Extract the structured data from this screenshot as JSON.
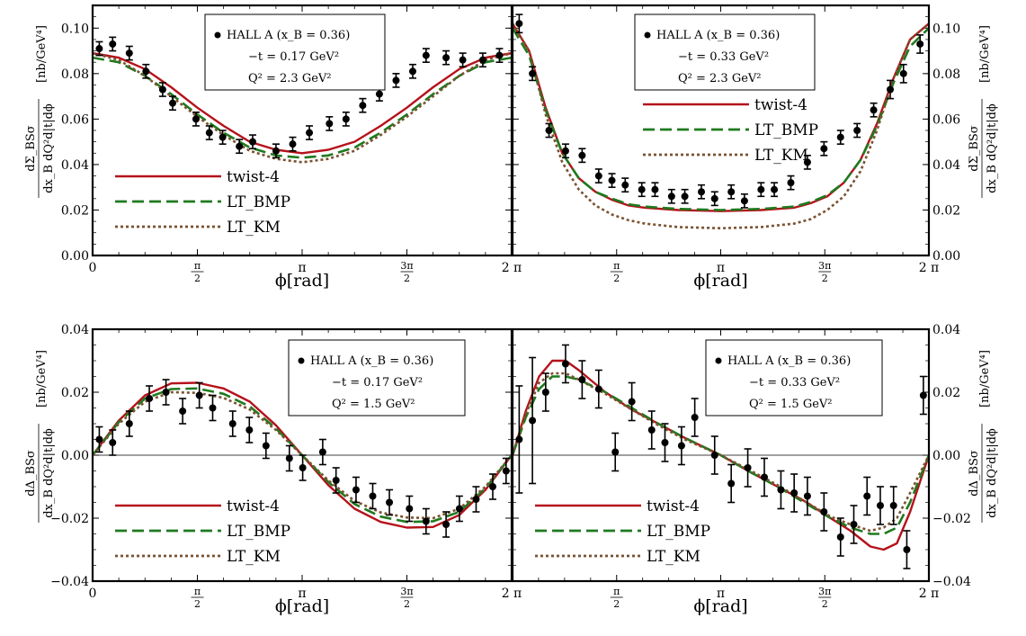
{
  "chart_data": [
    {
      "type": "line",
      "panel": "top-left",
      "x_unit": "rad",
      "xlim": [
        0,
        6.2832
      ],
      "ylim": [
        0,
        0.11
      ],
      "yticks": [
        0,
        0.02,
        0.04,
        0.06,
        0.08,
        0.1
      ],
      "ytick_labels": [
        "0.00",
        "0.02",
        "0.04",
        "0.06",
        "0.08",
        "0.10"
      ],
      "xtick_labels": [
        "0",
        "π/2",
        "π",
        "3π/2",
        "2 π"
      ],
      "xlabel": "ϕ[rad]",
      "ylabel": "dΣ_BSσ / dx_B dQ²d|t|dϕ [nb/GeV⁴]",
      "ylabel_side": "left",
      "zero_line": false,
      "legend": [
        "twist-4",
        "LT_BMP",
        "LT_KM"
      ],
      "legend_position": "bottom-left",
      "info": {
        "line1": "HALL A (x_B = 0.36)",
        "line2": "−t = 0.17 GeV²",
        "line3": "Q² = 2.3   GeV²"
      },
      "info_position": "top-center",
      "series": [
        {
          "name": "twist-4",
          "style": "solid",
          "color": "#b5121b",
          "x": [
            0,
            0.3927,
            0.7854,
            1.1781,
            1.5708,
            1.9635,
            2.3562,
            2.7489,
            3.1416,
            3.5343,
            3.927,
            4.3197,
            4.7124,
            5.1051,
            5.4978,
            5.8905,
            6.2832
          ],
          "y": [
            0.089,
            0.087,
            0.082,
            0.074,
            0.065,
            0.057,
            0.05,
            0.0465,
            0.045,
            0.0465,
            0.05,
            0.057,
            0.065,
            0.074,
            0.082,
            0.087,
            0.089
          ]
        },
        {
          "name": "LT_BMP",
          "style": "dashed",
          "color": "#1f7a1f",
          "x": [
            0,
            0.3927,
            0.7854,
            1.1781,
            1.5708,
            1.9635,
            2.3562,
            2.7489,
            3.1416,
            3.5343,
            3.927,
            4.3197,
            4.7124,
            5.1051,
            5.4978,
            5.8905,
            6.2832
          ],
          "y": [
            0.087,
            0.085,
            0.079,
            0.071,
            0.062,
            0.054,
            0.0475,
            0.044,
            0.043,
            0.044,
            0.0475,
            0.054,
            0.062,
            0.071,
            0.079,
            0.085,
            0.087
          ]
        },
        {
          "name": "LT_KM",
          "style": "dotted",
          "color": "#7a5230",
          "x": [
            0,
            0.3927,
            0.7854,
            1.1781,
            1.5708,
            1.9635,
            2.3562,
            2.7489,
            3.1416,
            3.5343,
            3.927,
            4.3197,
            4.7124,
            5.1051,
            5.4978,
            5.8905,
            6.2832
          ],
          "y": [
            0.089,
            0.086,
            0.079,
            0.07,
            0.061,
            0.053,
            0.046,
            0.0425,
            0.041,
            0.0425,
            0.046,
            0.053,
            0.061,
            0.07,
            0.079,
            0.086,
            0.089
          ]
        }
      ],
      "data_points": {
        "x": [
          0.1,
          0.3,
          0.55,
          0.8,
          1.05,
          1.2,
          1.55,
          1.75,
          1.95,
          2.2,
          2.4,
          2.75,
          3.0,
          3.25,
          3.55,
          3.8,
          4.05,
          4.3,
          4.55,
          4.8,
          5.0,
          5.3,
          5.55,
          5.85,
          6.1
        ],
        "y": [
          0.091,
          0.093,
          0.089,
          0.081,
          0.073,
          0.067,
          0.06,
          0.054,
          0.052,
          0.048,
          0.05,
          0.046,
          0.049,
          0.054,
          0.058,
          0.06,
          0.066,
          0.071,
          0.077,
          0.081,
          0.088,
          0.087,
          0.086,
          0.086,
          0.088
        ],
        "err": [
          0.003,
          0.003,
          0.003,
          0.003,
          0.003,
          0.003,
          0.003,
          0.003,
          0.003,
          0.003,
          0.003,
          0.003,
          0.003,
          0.003,
          0.003,
          0.003,
          0.003,
          0.003,
          0.003,
          0.003,
          0.003,
          0.003,
          0.003,
          0.003,
          0.003
        ]
      }
    },
    {
      "type": "line",
      "panel": "top-right",
      "x_unit": "rad",
      "xlim": [
        0,
        6.2832
      ],
      "ylim": [
        0,
        0.11
      ],
      "yticks": [
        0,
        0.02,
        0.04,
        0.06,
        0.08,
        0.1
      ],
      "ytick_labels": [
        "0.00",
        "0.02",
        "0.04",
        "0.06",
        "0.08",
        "0.10"
      ],
      "xtick_labels": [
        "0",
        "π/2",
        "π",
        "3π/2",
        "2 π"
      ],
      "xlabel": "ϕ[rad]",
      "ylabel": "dΣ_BSσ / dx_B dQ²d|t|dϕ [nb/GeV⁴]",
      "ylabel_side": "right",
      "zero_line": false,
      "legend": [
        "twist-4",
        "LT_BMP",
        "LT_KM"
      ],
      "legend_position": "center-left",
      "info": {
        "line1": "HALL A (x_B = 0.36)",
        "line2": "−t = 0.33 GeV²",
        "line3": "Q² = 2.3   GeV²"
      },
      "info_position": "top-center",
      "series": [
        {
          "name": "twist-4",
          "style": "solid",
          "color": "#b5121b",
          "x": [
            0,
            0.25,
            0.5,
            0.75,
            1.0,
            1.25,
            1.5,
            1.75,
            2.0,
            2.5,
            3.1416,
            3.75,
            4.25,
            4.5,
            4.75,
            5.0,
            5.25,
            5.5,
            5.75,
            6.0,
            6.2832
          ],
          "y": [
            0.102,
            0.09,
            0.065,
            0.045,
            0.034,
            0.028,
            0.0245,
            0.022,
            0.021,
            0.02,
            0.0195,
            0.02,
            0.021,
            0.023,
            0.026,
            0.032,
            0.042,
            0.058,
            0.078,
            0.095,
            0.102
          ]
        },
        {
          "name": "LT_BMP",
          "style": "dashed",
          "color": "#1f7a1f",
          "x": [
            0,
            0.25,
            0.5,
            0.75,
            1.0,
            1.25,
            1.5,
            1.75,
            2.0,
            2.5,
            3.1416,
            3.75,
            4.25,
            4.5,
            4.75,
            5.0,
            5.25,
            5.5,
            5.75,
            6.0,
            6.2832
          ],
          "y": [
            0.1,
            0.088,
            0.064,
            0.045,
            0.034,
            0.028,
            0.025,
            0.0225,
            0.0215,
            0.0205,
            0.02,
            0.0205,
            0.0215,
            0.0235,
            0.0265,
            0.032,
            0.042,
            0.057,
            0.076,
            0.092,
            0.1
          ]
        },
        {
          "name": "LT_KM",
          "style": "dotted",
          "color": "#7a5230",
          "x": [
            0,
            0.25,
            0.5,
            0.75,
            1.0,
            1.25,
            1.5,
            1.75,
            2.0,
            2.5,
            3.1416,
            3.75,
            4.25,
            4.5,
            4.75,
            5.0,
            5.25,
            5.5,
            5.75,
            6.0,
            6.2832
          ],
          "y": [
            0.102,
            0.09,
            0.062,
            0.041,
            0.029,
            0.022,
            0.018,
            0.0155,
            0.014,
            0.0125,
            0.012,
            0.0125,
            0.014,
            0.016,
            0.02,
            0.026,
            0.037,
            0.055,
            0.078,
            0.095,
            0.102
          ]
        }
      ],
      "data_points": {
        "x": [
          0.1,
          0.3,
          0.55,
          0.8,
          1.05,
          1.3,
          1.5,
          1.7,
          1.95,
          2.15,
          2.4,
          2.6,
          2.85,
          3.05,
          3.3,
          3.5,
          3.75,
          3.95,
          4.2,
          4.45,
          4.7,
          4.95,
          5.2,
          5.45,
          5.7,
          5.9,
          6.15
        ],
        "y": [
          0.102,
          0.08,
          0.055,
          0.046,
          0.044,
          0.035,
          0.033,
          0.031,
          0.029,
          0.029,
          0.026,
          0.026,
          0.028,
          0.025,
          0.028,
          0.024,
          0.029,
          0.029,
          0.032,
          0.041,
          0.047,
          0.052,
          0.055,
          0.064,
          0.073,
          0.08,
          0.093
        ],
        "err": [
          0.004,
          0.003,
          0.003,
          0.003,
          0.003,
          0.003,
          0.003,
          0.003,
          0.003,
          0.003,
          0.003,
          0.003,
          0.003,
          0.003,
          0.003,
          0.003,
          0.003,
          0.003,
          0.003,
          0.003,
          0.003,
          0.003,
          0.003,
          0.003,
          0.004,
          0.004,
          0.004
        ]
      }
    },
    {
      "type": "line",
      "panel": "bottom-left",
      "x_unit": "rad",
      "xlim": [
        0,
        6.2832
      ],
      "ylim": [
        -0.04,
        0.04
      ],
      "yticks": [
        -0.04,
        -0.02,
        0,
        0.02,
        0.04
      ],
      "ytick_labels": [
        "−0.04",
        "−0.02",
        "0.00",
        "0.02",
        "0.04"
      ],
      "xtick_labels": [
        "0",
        "π/2",
        "π",
        "3π/2",
        "2 π"
      ],
      "xlabel": "ϕ[rad]",
      "ylabel": "dΔ_BSσ / dx_B dQ²d|t|dϕ [nb/GeV⁴]",
      "ylabel_side": "left",
      "zero_line": true,
      "legend": [
        "twist-4",
        "LT_BMP",
        "LT_KM"
      ],
      "legend_position": "bottom-left",
      "info": {
        "line1": "HALL A (x_B = 0.36)",
        "line2": "−t = 0.17 GeV²",
        "line3": "Q² = 1.5   GeV²"
      },
      "info_position": "top-right",
      "series": [
        {
          "name": "twist-4",
          "style": "solid",
          "color": "#b5121b",
          "x": [
            0,
            0.3927,
            0.7854,
            1.1781,
            1.5708,
            1.9635,
            2.3562,
            2.7489,
            3.1416,
            3.5343,
            3.927,
            4.3197,
            4.7124,
            5.1051,
            5.4978,
            5.8905,
            6.2832
          ],
          "y": [
            0.0,
            0.011,
            0.019,
            0.0228,
            0.023,
            0.0212,
            0.017,
            0.0095,
            0.0,
            -0.0095,
            -0.017,
            -0.0212,
            -0.023,
            -0.0228,
            -0.019,
            -0.011,
            0.0
          ]
        },
        {
          "name": "LT_BMP",
          "style": "dashed",
          "color": "#1f7a1f",
          "x": [
            0,
            0.3927,
            0.7854,
            1.1781,
            1.5708,
            1.9635,
            2.3562,
            2.7489,
            3.1416,
            3.5343,
            3.927,
            4.3197,
            4.7124,
            5.1051,
            5.4978,
            5.8905,
            6.2832
          ],
          "y": [
            0.0,
            0.0105,
            0.018,
            0.021,
            0.0212,
            0.0195,
            0.0155,
            0.0085,
            0.0,
            -0.0085,
            -0.0155,
            -0.0195,
            -0.0212,
            -0.021,
            -0.018,
            -0.0105,
            0.0
          ]
        },
        {
          "name": "LT_KM",
          "style": "dotted",
          "color": "#7a5230",
          "x": [
            0,
            0.3927,
            0.7854,
            1.1781,
            1.5708,
            1.9635,
            2.3562,
            2.7489,
            3.1416,
            3.5343,
            3.927,
            4.3197,
            4.7124,
            5.1051,
            5.4978,
            5.8905,
            6.2832
          ],
          "y": [
            0.0,
            0.01,
            0.017,
            0.02,
            0.0198,
            0.0182,
            0.0145,
            0.008,
            0.0,
            -0.008,
            -0.0145,
            -0.0182,
            -0.0198,
            -0.02,
            -0.017,
            -0.01,
            0.0
          ]
        }
      ],
      "data_points": {
        "x": [
          0.1,
          0.3,
          0.55,
          0.85,
          1.1,
          1.35,
          1.6,
          1.8,
          2.1,
          2.35,
          2.6,
          2.95,
          3.15,
          3.45,
          3.65,
          3.95,
          4.2,
          4.45,
          4.75,
          5.0,
          5.3,
          5.5,
          5.75,
          6.0,
          6.2
        ],
        "y": [
          0.005,
          0.004,
          0.01,
          0.018,
          0.02,
          0.014,
          0.019,
          0.015,
          0.01,
          0.008,
          0.003,
          -0.001,
          -0.004,
          0.001,
          -0.008,
          -0.011,
          -0.013,
          -0.015,
          -0.017,
          -0.021,
          -0.022,
          -0.017,
          -0.014,
          -0.01,
          -0.005
        ]
      }
    },
    {
      "type": "line",
      "panel": "bottom-right",
      "x_unit": "rad",
      "xlim": [
        0,
        6.2832
      ],
      "ylim": [
        -0.04,
        0.04
      ],
      "yticks": [
        -0.04,
        -0.02,
        0,
        0.02,
        0.04
      ],
      "ytick_labels": [
        "−0.04",
        "−0.02",
        "0.00",
        "0.02",
        "0.04"
      ],
      "xtick_labels": [
        "0",
        "π/2",
        "π",
        "3π/2",
        "2 π"
      ],
      "xlabel": "ϕ[rad]",
      "ylabel": "dΔ_BSσ / dx_B dQ²d|t|dϕ [nb/GeV⁴]",
      "ylabel_side": "right",
      "zero_line": true,
      "legend": [
        "twist-4",
        "LT_BMP",
        "LT_KM"
      ],
      "legend_position": "bottom-left",
      "info": {
        "line1": "HALL A (x_B = 0.36)",
        "line2": "−t = 0.33 GeV²",
        "line3": "Q² = 1.5   GeV²"
      },
      "info_position": "top-right",
      "series": [
        {
          "name": "twist-4",
          "style": "solid",
          "color": "#b5121b",
          "x": [
            0,
            0.2,
            0.4,
            0.6,
            0.8,
            1.0,
            1.4,
            1.8,
            2.2,
            2.6,
            3.1416,
            3.6,
            4.0,
            4.4,
            4.8,
            5.1,
            5.4,
            5.6,
            5.8,
            6.0,
            6.2832
          ],
          "y": [
            0.0,
            0.014,
            0.025,
            0.03,
            0.03,
            0.027,
            0.02,
            0.0145,
            0.01,
            0.0055,
            0.0,
            -0.0055,
            -0.01,
            -0.0145,
            -0.02,
            -0.024,
            -0.029,
            -0.03,
            -0.028,
            -0.018,
            0.0
          ]
        },
        {
          "name": "LT_BMP",
          "style": "dashed",
          "color": "#1f7a1f",
          "x": [
            0,
            0.2,
            0.4,
            0.6,
            0.8,
            1.0,
            1.4,
            1.8,
            2.2,
            2.6,
            3.1416,
            3.6,
            4.0,
            4.4,
            4.8,
            5.1,
            5.4,
            5.6,
            5.8,
            6.0,
            6.2832
          ],
          "y": [
            0.0,
            0.012,
            0.021,
            0.025,
            0.025,
            0.024,
            0.02,
            0.015,
            0.01,
            0.0055,
            0.0,
            -0.0055,
            -0.01,
            -0.015,
            -0.02,
            -0.023,
            -0.025,
            -0.025,
            -0.023,
            -0.015,
            0.0
          ]
        },
        {
          "name": "LT_KM",
          "style": "dotted",
          "color": "#7a5230",
          "x": [
            0,
            0.2,
            0.4,
            0.6,
            0.8,
            1.0,
            1.4,
            1.8,
            2.2,
            2.6,
            3.1416,
            3.6,
            4.0,
            4.4,
            4.8,
            5.1,
            5.4,
            5.6,
            5.8,
            6.0,
            6.2832
          ],
          "y": [
            0.0,
            0.013,
            0.023,
            0.026,
            0.026,
            0.024,
            0.0195,
            0.0145,
            0.0095,
            0.005,
            0.0,
            -0.005,
            -0.0095,
            -0.0145,
            -0.0195,
            -0.022,
            -0.024,
            -0.023,
            -0.02,
            -0.012,
            0.0
          ]
        }
      ],
      "data_points": {
        "x": [
          0.1,
          0.3,
          0.5,
          0.8,
          1.05,
          1.3,
          1.55,
          1.8,
          2.1,
          2.3,
          2.55,
          2.75,
          3.05,
          3.3,
          3.55,
          3.8,
          4.05,
          4.25,
          4.45,
          4.7,
          4.95,
          5.15,
          5.35,
          5.55,
          5.75,
          5.95,
          6.2
        ],
        "y": [
          0.005,
          0.011,
          0.02,
          0.029,
          0.024,
          0.021,
          0.001,
          0.017,
          0.008,
          0.004,
          0.003,
          0.012,
          0.0,
          -0.009,
          -0.004,
          -0.007,
          -0.011,
          -0.012,
          -0.013,
          -0.018,
          -0.026,
          -0.022,
          -0.013,
          -0.016,
          -0.016,
          -0.03,
          0.019
        ]
      }
    }
  ]
}
